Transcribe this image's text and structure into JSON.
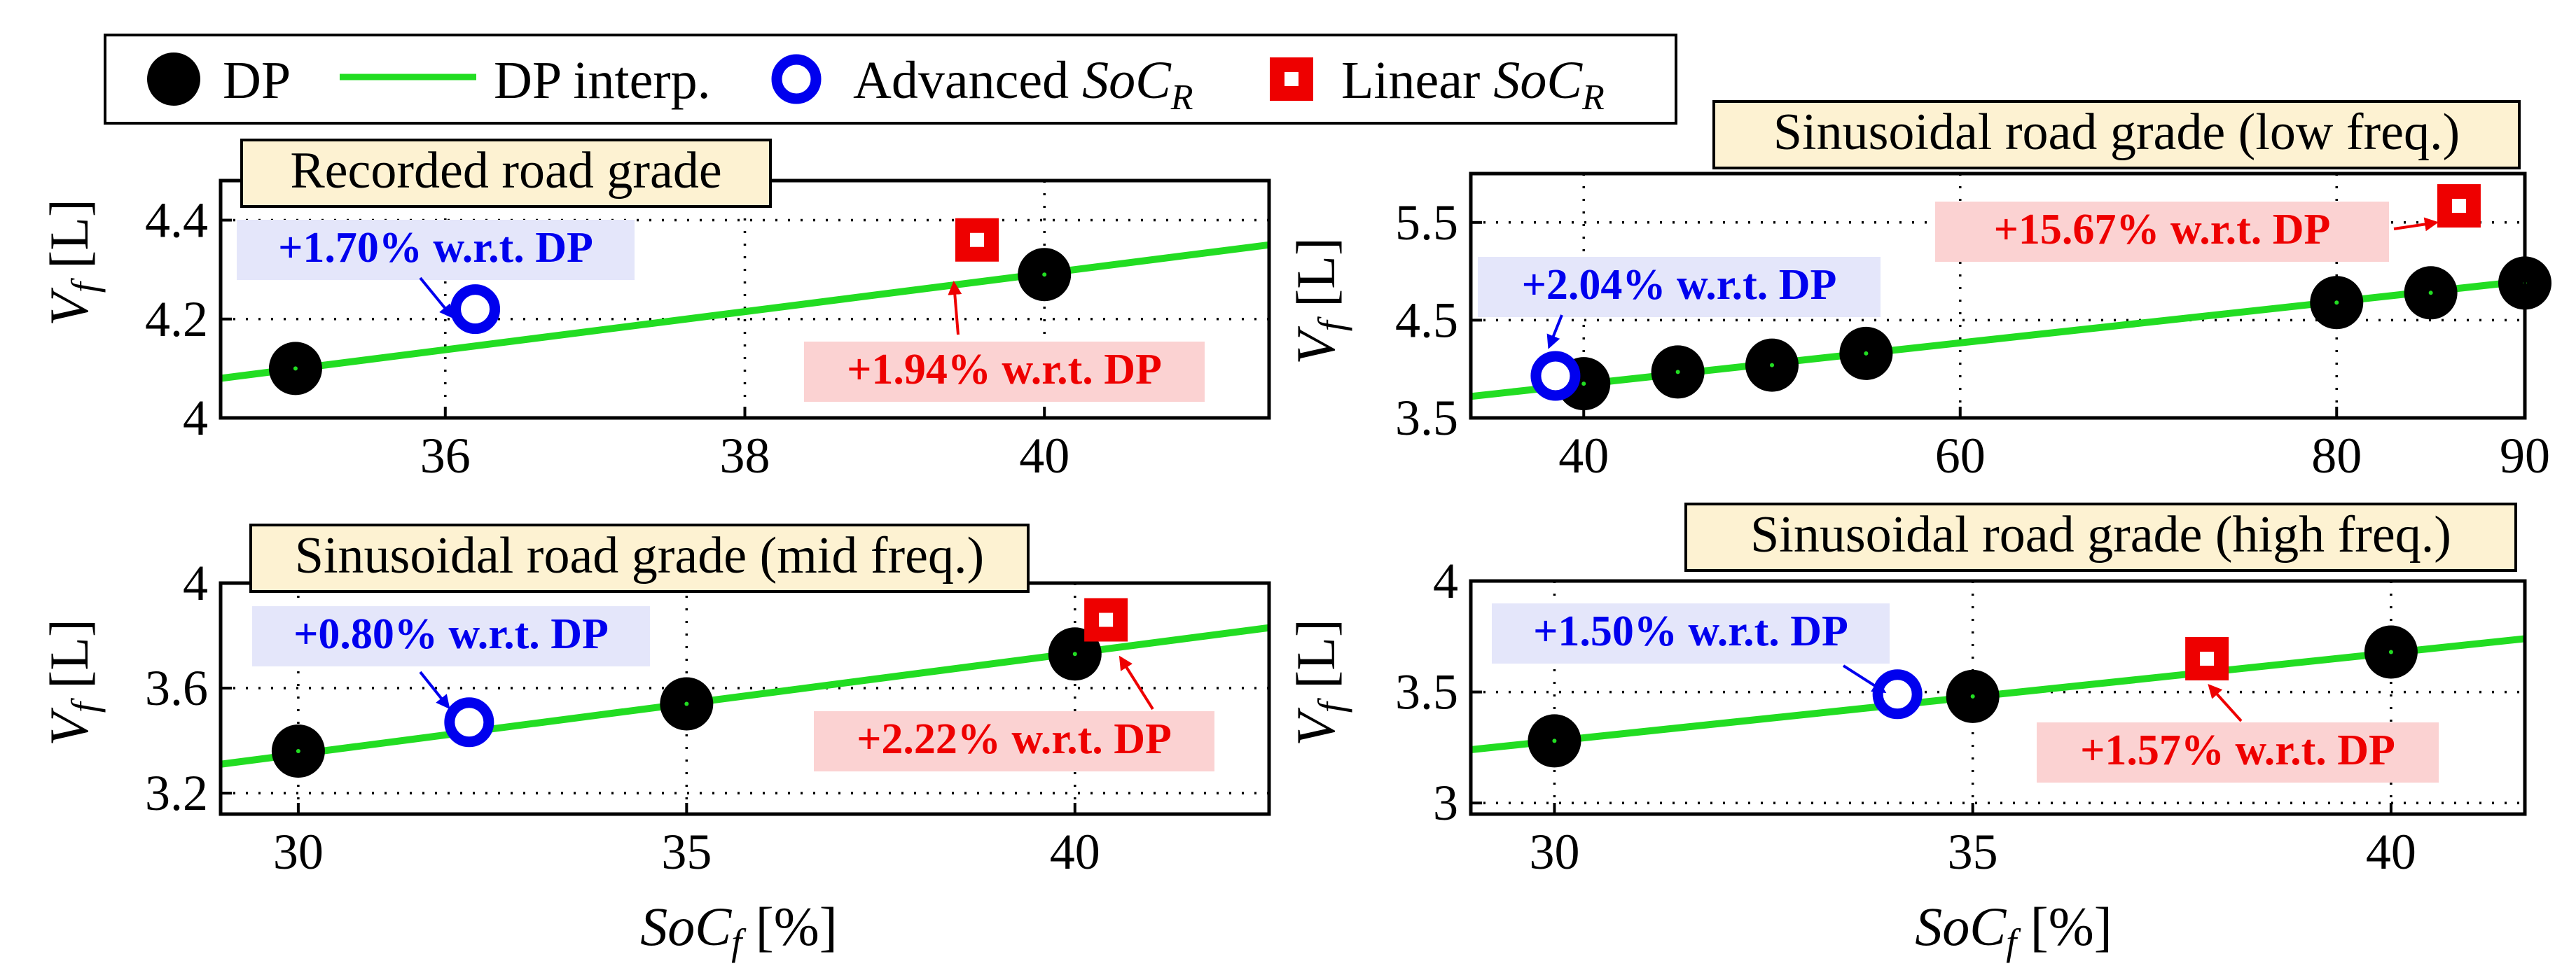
{
  "colors": {
    "dp": "#000000",
    "interp": "#22dd22",
    "advanced": "#0000ee",
    "linear": "#ee0000",
    "title_bg": "#fdf2d2",
    "blue_box": "#e4e6fa",
    "red_box": "#fbd2d2"
  },
  "legend": {
    "dp": "DP",
    "interp": "DP interp.",
    "advanced_prefix": "Advanced ",
    "linear_prefix": "Linear ",
    "soc_main": "SoC",
    "soc_sub": "R"
  },
  "axis_labels": {
    "y_main": "V",
    "y_sub": "f",
    "y_unit": " [L]",
    "x_main": "SoC",
    "x_sub": "f",
    "x_unit": " [%]"
  },
  "chart_data": [
    {
      "type": "scatter",
      "title": "Recorded road grade",
      "xlabel": "",
      "ylabel": "Vf [L]",
      "xlim": [
        34.5,
        41.5
      ],
      "ylim": [
        4.0,
        4.48
      ],
      "xticks": [
        36,
        38,
        40
      ],
      "yticks": [
        4.0,
        4.2,
        4.4
      ],
      "ytick_labels": [
        "4",
        "4.2",
        "4.4"
      ],
      "series": [
        {
          "name": "DP",
          "points": [
            [
              35,
              4.1
            ],
            [
              40,
              4.29
            ]
          ]
        },
        {
          "name": "DP interp.",
          "line": [
            [
              34.5,
              4.08
            ],
            [
              41.5,
              4.35
            ]
          ]
        },
        {
          "name": "Advanced SoCR",
          "points": [
            [
              36.2,
              4.22
            ]
          ]
        },
        {
          "name": "Linear SoCR",
          "points": [
            [
              39.55,
              4.36
            ]
          ]
        }
      ],
      "annotations": [
        {
          "text": "+1.70% w.r.t. DP",
          "color": "blue"
        },
        {
          "text": "+1.94% w.r.t. DP",
          "color": "red"
        }
      ]
    },
    {
      "type": "scatter",
      "title": "Sinusoidal road grade (low freq.)",
      "xlabel": "",
      "ylabel": "Vf [L]",
      "xlim": [
        34,
        90
      ],
      "ylim": [
        3.5,
        6.0
      ],
      "xticks": [
        40,
        60,
        80,
        90
      ],
      "yticks": [
        3.5,
        4.5,
        5.5
      ],
      "ytick_labels": [
        "3.5",
        "4.5",
        "5.5"
      ],
      "series": [
        {
          "name": "DP",
          "points": [
            [
              40,
              3.85
            ],
            [
              45,
              3.97
            ],
            [
              50,
              4.04
            ],
            [
              55,
              4.16
            ],
            [
              80,
              4.68
            ],
            [
              85,
              4.78
            ],
            [
              90,
              4.88
            ]
          ]
        },
        {
          "name": "DP interp.",
          "line": [
            [
              34,
              3.72
            ],
            [
              90,
              4.9
            ]
          ]
        },
        {
          "name": "Advanced SoCR",
          "points": [
            [
              38.5,
              3.93
            ]
          ]
        },
        {
          "name": "Linear SoCR",
          "points": [
            [
              86.5,
              5.67
            ]
          ]
        }
      ],
      "annotations": [
        {
          "text": "+2.04% w.r.t. DP",
          "color": "blue"
        },
        {
          "text": "+15.67% w.r.t. DP",
          "color": "red"
        }
      ]
    },
    {
      "type": "scatter",
      "title": "Sinusoidal road grade (mid freq.)",
      "xlabel": "SoCf [%]",
      "ylabel": "Vf [L]",
      "xlim": [
        29,
        42.5
      ],
      "ylim": [
        3.12,
        4.0
      ],
      "xticks": [
        30,
        35,
        40
      ],
      "yticks": [
        3.2,
        3.6,
        4.0
      ],
      "ytick_labels": [
        "3.2",
        "3.6",
        "4"
      ],
      "series": [
        {
          "name": "DP",
          "points": [
            [
              30,
              3.36
            ],
            [
              35,
              3.54
            ],
            [
              40,
              3.73
            ]
          ]
        },
        {
          "name": "DP interp.",
          "line": [
            [
              29,
              3.31
            ],
            [
              42.5,
              3.83
            ]
          ]
        },
        {
          "name": "Advanced SoCR",
          "points": [
            [
              32.2,
              3.47
            ]
          ]
        },
        {
          "name": "Linear SoCR",
          "points": [
            [
              40.4,
              3.86
            ]
          ]
        }
      ],
      "annotations": [
        {
          "text": "+0.80% w.r.t. DP",
          "color": "blue"
        },
        {
          "text": "+2.22% w.r.t. DP",
          "color": "red"
        }
      ]
    },
    {
      "type": "scatter",
      "title": "Sinusoidal road grade (high freq.)",
      "xlabel": "SoCf [%]",
      "ylabel": "Vf [L]",
      "xlim": [
        29,
        41.6
      ],
      "ylim": [
        2.95,
        4.0
      ],
      "xticks": [
        30,
        35,
        40
      ],
      "yticks": [
        3.0,
        3.5,
        4.0
      ],
      "ytick_labels": [
        "3",
        "3.5",
        "4"
      ],
      "series": [
        {
          "name": "DP",
          "points": [
            [
              30,
              3.28
            ],
            [
              35,
              3.48
            ],
            [
              40,
              3.68
            ]
          ]
        },
        {
          "name": "DP interp.",
          "line": [
            [
              29,
              3.24
            ],
            [
              41.6,
              3.74
            ]
          ]
        },
        {
          "name": "Advanced SoCR",
          "points": [
            [
              34.1,
              3.49
            ]
          ]
        },
        {
          "name": "Linear SoCR",
          "points": [
            [
              37.8,
              3.65
            ]
          ]
        }
      ],
      "annotations": [
        {
          "text": "+1.50% w.r.t. DP",
          "color": "blue"
        },
        {
          "text": "+1.57% w.r.t. DP",
          "color": "red"
        }
      ]
    }
  ]
}
